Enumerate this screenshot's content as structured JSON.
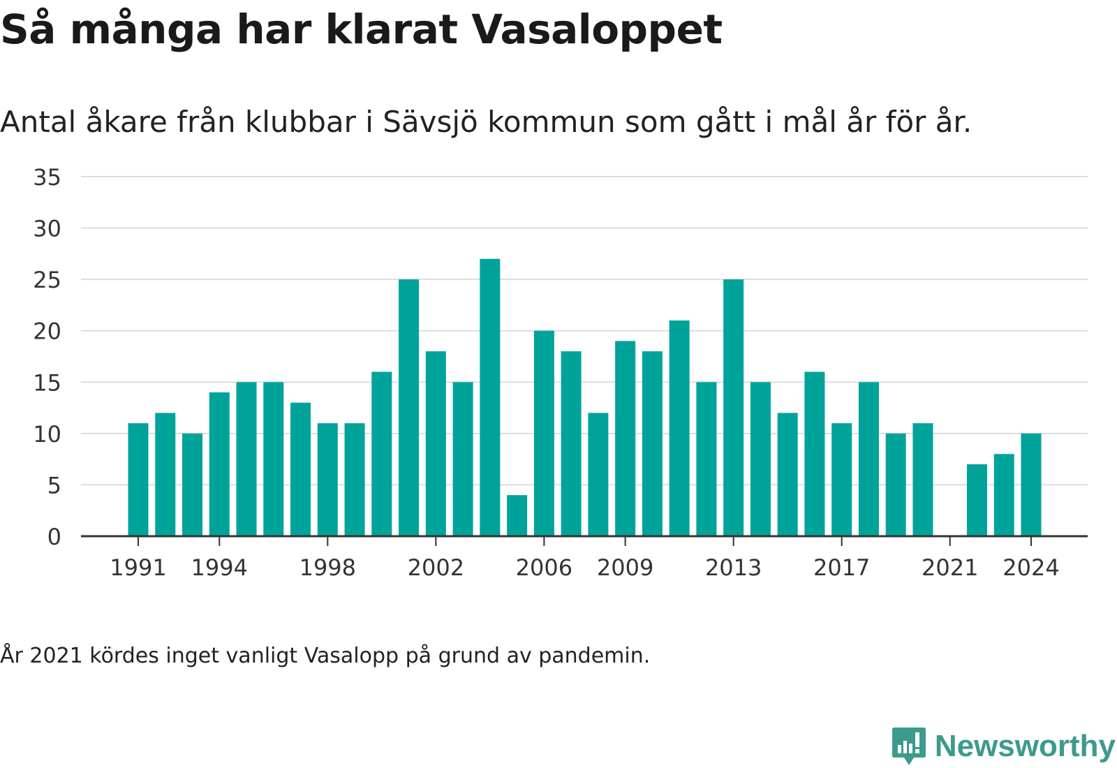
{
  "title": "Så många har klarat Vasaloppet",
  "subtitle": "Antal åkare från klubbar i Sävsjö kommun som gått i mål år för år.",
  "note": "År 2021 kördes inget vanligt Vasalopp på grund av pandemin.",
  "brand": {
    "name": "Newsworthy",
    "icon": "newsworthy-logo-icon",
    "color": "#3d9a8c"
  },
  "colors": {
    "bar": "#00a39a",
    "grid": "#dddddd",
    "axis": "#333333"
  },
  "chart_data": {
    "type": "bar",
    "title": "Så många har klarat Vasaloppet",
    "subtitle": "Antal åkare från klubbar i Sävsjö kommun som gått i mål år för år.",
    "xlabel": "",
    "ylabel": "",
    "categories": [
      1991,
      1992,
      1993,
      1994,
      1995,
      1996,
      1997,
      1998,
      1999,
      2000,
      2001,
      2002,
      2003,
      2004,
      2005,
      2006,
      2007,
      2008,
      2009,
      2010,
      2011,
      2012,
      2013,
      2014,
      2015,
      2016,
      2017,
      2018,
      2019,
      2020,
      2021,
      2022,
      2023,
      2024
    ],
    "values": [
      11,
      12,
      10,
      14,
      15,
      15,
      13,
      11,
      11,
      16,
      25,
      18,
      15,
      27,
      4,
      20,
      18,
      12,
      19,
      18,
      21,
      15,
      25,
      15,
      12,
      16,
      11,
      15,
      10,
      11,
      null,
      7,
      8,
      10
    ],
    "x_tick_labels": [
      "1991",
      "1994",
      "1998",
      "2002",
      "2006",
      "2009",
      "2013",
      "2017",
      "2021",
      "2024"
    ],
    "y_ticks": [
      0,
      5,
      10,
      15,
      20,
      25,
      30,
      35
    ],
    "ylim": [
      0,
      35
    ],
    "grid": true,
    "legend": "none"
  }
}
